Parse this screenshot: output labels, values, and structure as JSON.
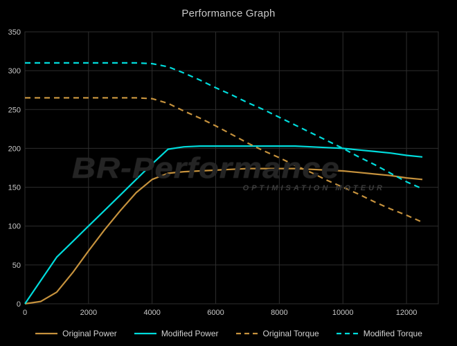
{
  "title": "Performance Graph",
  "colors": {
    "background": "#000000",
    "grid": "#2e2e2e",
    "tick_text": "#c9c9c9",
    "title_text": "#c9c9c9",
    "legend_text": "#d2d2d2",
    "orange": "#c6923d",
    "cyan": "#00dcdc",
    "watermark_main": "#242424",
    "watermark_sub": "#3d3d3d"
  },
  "watermark": {
    "line1": "BR-Performance",
    "line2": "OPTIMISATION MOTEUR"
  },
  "chart_data": {
    "type": "line",
    "title": "Performance Graph",
    "xlabel": "",
    "ylabel": "",
    "xlim": [
      0,
      13000
    ],
    "ylim": [
      0,
      350
    ],
    "xticks": [
      0,
      2000,
      4000,
      6000,
      8000,
      10000,
      12000
    ],
    "yticks": [
      0,
      50,
      100,
      150,
      200,
      250,
      300,
      350
    ],
    "grid": true,
    "legend_position": "bottom",
    "x": [
      0,
      500,
      1000,
      1500,
      2000,
      2500,
      3000,
      3500,
      4000,
      4500,
      5000,
      5500,
      6000,
      6500,
      7000,
      7500,
      8000,
      8500,
      9000,
      9500,
      10000,
      10500,
      11000,
      11500,
      12000,
      12500
    ],
    "series": [
      {
        "name": "Original Power",
        "color": "#c6923d",
        "dash": false,
        "values": [
          0,
          3,
          15,
          40,
          68,
          95,
          120,
          143,
          160,
          168,
          170,
          171,
          172,
          173,
          174,
          174,
          174,
          174,
          173,
          172,
          171,
          169,
          167,
          165,
          162,
          160
        ]
      },
      {
        "name": "Modified Power",
        "color": "#00dcdc",
        "dash": false,
        "values": [
          0,
          30,
          60,
          80,
          100,
          120,
          140,
          160,
          180,
          199,
          202,
          203,
          203,
          203,
          203,
          203,
          203,
          203,
          202,
          201,
          200,
          198,
          196,
          194,
          191,
          189
        ]
      },
      {
        "name": "Original Torque",
        "color": "#c6923d",
        "dash": true,
        "values": [
          265,
          265,
          265,
          265,
          265,
          265,
          265,
          265,
          264,
          258,
          248,
          239,
          229,
          218,
          207,
          197,
          188,
          178,
          169,
          159,
          150,
          141,
          131,
          122,
          114,
          105
        ]
      },
      {
        "name": "Modified Torque",
        "color": "#00dcdc",
        "dash": true,
        "values": [
          310,
          310,
          310,
          310,
          310,
          310,
          310,
          310,
          309,
          305,
          297,
          288,
          278,
          269,
          259,
          250,
          240,
          230,
          220,
          210,
          200,
          189,
          179,
          168,
          157,
          148
        ]
      }
    ]
  }
}
